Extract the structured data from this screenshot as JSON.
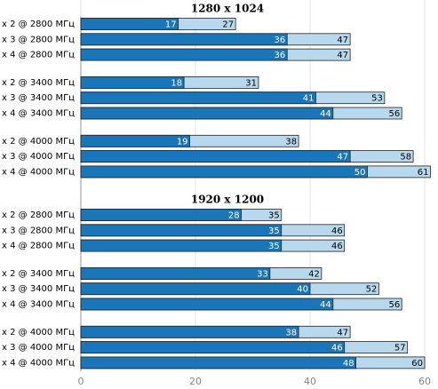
{
  "chart_data": {
    "type": "bar",
    "xlim": [
      0,
      60
    ],
    "xticks": [
      0,
      20,
      40,
      60
    ],
    "grid": true,
    "panels": [
      {
        "title": "1280 x 1024",
        "categories": [
          "x 2 @ 2800 МГц",
          "x 3 @ 2800 МГц",
          "x 4 @ 2800 МГц",
          "x 2 @ 3400 МГц",
          "x 3 @ 3400 МГц",
          "x 4 @ 3400 МГц",
          "x 2 @ 4000 МГц",
          "x 3 @ 4000 МГц",
          "x 4 @ 4000 МГц"
        ],
        "series": [
          {
            "color": "#b8d8ee",
            "values": [
              27,
              47,
              47,
              31,
              53,
              56,
              38,
              58,
              61
            ]
          },
          {
            "color": "#1a76b8",
            "values": [
              17,
              36,
              36,
              18,
              41,
              44,
              19,
              47,
              50
            ]
          }
        ]
      },
      {
        "title": "1920 x 1200",
        "categories": [
          "x 2 @ 2800 МГц",
          "x 3 @ 2800 МГц",
          "x 4 @ 2800 МГц",
          "x 2 @ 3400 МГц",
          "x 3 @ 3400 МГц",
          "x 4 @ 3400 МГц",
          "x 2 @ 4000 МГц",
          "x 3 @ 4000 МГц",
          "x 4 @ 4000 МГц"
        ],
        "series": [
          {
            "color": "#b8d8ee",
            "values": [
              35,
              46,
              46,
              42,
              52,
              56,
              47,
              57,
              60
            ]
          },
          {
            "color": "#1a76b8",
            "values": [
              28,
              35,
              35,
              33,
              40,
              44,
              38,
              46,
              48
            ]
          }
        ]
      }
    ]
  }
}
